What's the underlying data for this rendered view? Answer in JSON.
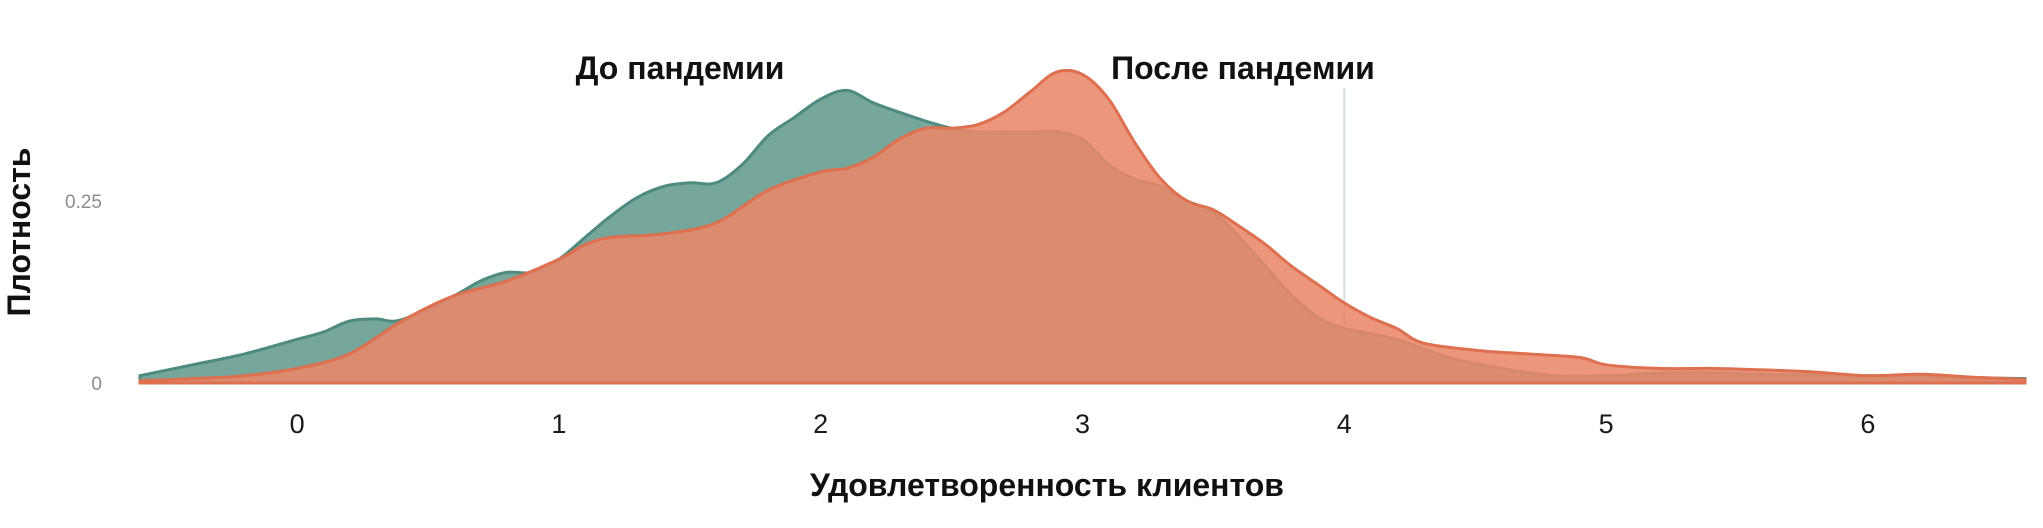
{
  "chart_data": {
    "type": "area",
    "title": "",
    "xlabel": "Удовлетворенность клиентов",
    "ylabel": "Плотность",
    "xlim": [
      -0.6,
      6.6
    ],
    "ylim": [
      0,
      0.43
    ],
    "xticks": [
      0,
      1,
      2,
      3,
      4,
      5,
      6
    ],
    "yticks": [
      0,
      0.25
    ],
    "ytick_labels": [
      "0",
      "0.25"
    ],
    "reference_line_x": 4,
    "series": [
      {
        "name": "До пандемии",
        "color": "#6a9e94",
        "x": [
          -0.6,
          -0.4,
          -0.2,
          0,
          0.1,
          0.2,
          0.3,
          0.4,
          0.6,
          0.7,
          0.8,
          0.9,
          1.0,
          1.1,
          1.2,
          1.3,
          1.4,
          1.5,
          1.6,
          1.7,
          1.8,
          1.9,
          2.0,
          2.1,
          2.2,
          2.3,
          2.4,
          2.5,
          2.6,
          2.7,
          2.8,
          2.9,
          3.0,
          3.1,
          3.2,
          3.3,
          3.4,
          3.5,
          3.6,
          3.7,
          3.8,
          3.9,
          4.0,
          4.2,
          4.4,
          4.6,
          4.8,
          5.0,
          5.3,
          5.6,
          6.0,
          6.3,
          6.6
        ],
        "values": [
          0.01,
          0.025,
          0.04,
          0.06,
          0.07,
          0.085,
          0.088,
          0.087,
          0.12,
          0.14,
          0.152,
          0.152,
          0.17,
          0.2,
          0.23,
          0.255,
          0.27,
          0.275,
          0.275,
          0.3,
          0.34,
          0.365,
          0.39,
          0.402,
          0.385,
          0.372,
          0.36,
          0.35,
          0.345,
          0.345,
          0.345,
          0.345,
          0.335,
          0.3,
          0.28,
          0.27,
          0.25,
          0.235,
          0.2,
          0.16,
          0.12,
          0.09,
          0.075,
          0.06,
          0.035,
          0.02,
          0.01,
          0.01,
          0.015,
          0.012,
          0.01,
          0.008,
          0.006
        ]
      },
      {
        "name": "После пандемии",
        "color": "#e9876a",
        "x": [
          -0.6,
          -0.4,
          -0.2,
          0,
          0.2,
          0.4,
          0.6,
          0.8,
          1.0,
          1.1,
          1.2,
          1.4,
          1.6,
          1.8,
          2.0,
          2.1,
          2.2,
          2.3,
          2.4,
          2.5,
          2.6,
          2.7,
          2.8,
          2.9,
          3.0,
          3.1,
          3.2,
          3.3,
          3.4,
          3.5,
          3.6,
          3.7,
          3.8,
          3.9,
          4.0,
          4.1,
          4.2,
          4.3,
          4.5,
          4.7,
          4.9,
          5.0,
          5.2,
          5.4,
          5.6,
          5.8,
          6.0,
          6.2,
          6.4,
          6.6
        ],
        "values": [
          0.003,
          0.006,
          0.01,
          0.02,
          0.04,
          0.085,
          0.12,
          0.14,
          0.17,
          0.19,
          0.2,
          0.205,
          0.22,
          0.265,
          0.29,
          0.295,
          0.31,
          0.335,
          0.35,
          0.35,
          0.355,
          0.372,
          0.4,
          0.427,
          0.424,
          0.39,
          0.33,
          0.28,
          0.25,
          0.238,
          0.215,
          0.19,
          0.16,
          0.135,
          0.11,
          0.09,
          0.075,
          0.055,
          0.045,
          0.04,
          0.035,
          0.025,
          0.02,
          0.02,
          0.018,
          0.015,
          0.01,
          0.012,
          0.008,
          0.005
        ]
      }
    ]
  }
}
